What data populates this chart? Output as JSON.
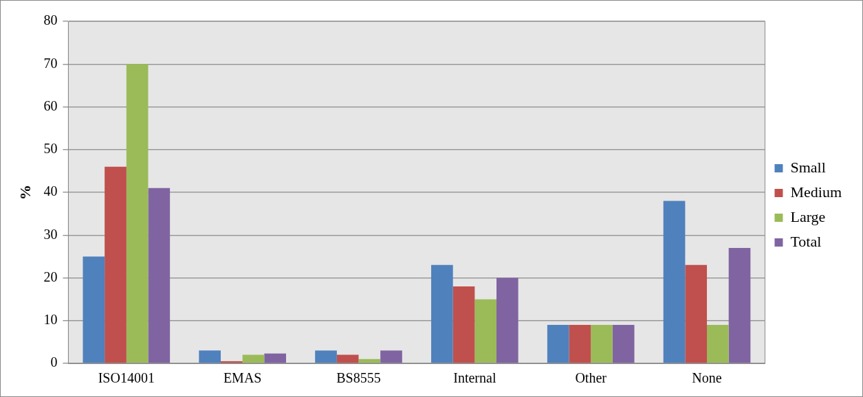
{
  "chart_data": {
    "type": "bar",
    "ylabel": "%",
    "categories": [
      "ISO14001",
      "EMAS",
      "BS8555",
      "Internal",
      "Other",
      "None"
    ],
    "series": [
      {
        "name": "Small",
        "color": "#4f81bd",
        "values": [
          25,
          3,
          3,
          23,
          9,
          38
        ]
      },
      {
        "name": "Medium",
        "color": "#c0504d",
        "values": [
          46,
          0.5,
          2,
          18,
          9,
          23
        ]
      },
      {
        "name": "Large",
        "color": "#9bbb59",
        "values": [
          70,
          2,
          1,
          15,
          9,
          9
        ]
      },
      {
        "name": "Total",
        "color": "#8064a2",
        "values": [
          41,
          2.3,
          3,
          20,
          9,
          27
        ]
      }
    ],
    "ylim": [
      0,
      80
    ],
    "yticks": [
      0,
      10,
      20,
      30,
      40,
      50,
      60,
      70,
      80
    ],
    "grid": "y",
    "legend": "right"
  }
}
